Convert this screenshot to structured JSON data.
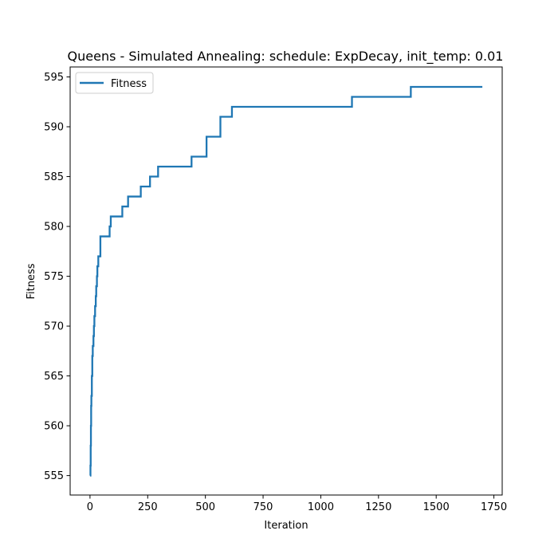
{
  "chart_data": {
    "type": "line",
    "title": "Queens - Simulated Annealing: schedule: ExpDecay, init_temp: 0.01",
    "xlabel": "Iteration",
    "ylabel": "Fitness",
    "xlim": [
      -86,
      1786
    ],
    "ylim": [
      553.05,
      596.0
    ],
    "xticks": [
      0,
      250,
      500,
      750,
      1000,
      1250,
      1500,
      1750
    ],
    "yticks": [
      555,
      560,
      565,
      570,
      575,
      580,
      585,
      590,
      595
    ],
    "legend": {
      "placement": "top-left",
      "entries": [
        "Fitness"
      ]
    },
    "grid": false,
    "colors": {
      "series": "#1f77b4"
    },
    "series": [
      {
        "name": "Fitness",
        "step": true,
        "x": [
          0,
          2,
          3,
          4,
          5,
          6,
          8,
          10,
          12,
          15,
          17,
          19,
          20,
          22,
          25,
          27,
          30,
          32,
          33,
          36,
          45,
          85,
          90,
          95,
          140,
          165,
          220,
          260,
          295,
          440,
          505,
          565,
          615,
          1135,
          1390,
          1700
        ],
        "y": [
          555,
          556,
          558,
          560,
          562,
          563,
          565,
          567,
          568,
          569,
          570,
          571,
          571,
          572,
          573,
          574,
          575,
          576,
          576,
          577,
          579,
          580,
          581,
          581,
          582,
          583,
          584,
          585,
          586,
          587,
          589,
          591,
          592,
          593,
          594,
          594
        ]
      }
    ]
  }
}
